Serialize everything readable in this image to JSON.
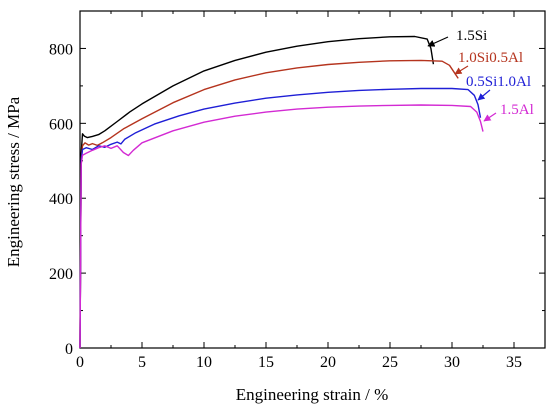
{
  "chart_data": {
    "type": "line",
    "title": "",
    "xlabel": "Engineering strain / %",
    "ylabel": "Engineering stress / MPa",
    "xlim": [
      0,
      37.5
    ],
    "ylim": [
      0,
      900
    ],
    "xticks": [
      0,
      5,
      10,
      15,
      20,
      25,
      30,
      35
    ],
    "yticks": [
      0,
      200,
      400,
      600,
      800
    ],
    "grid": false,
    "legend": "inline labels with arrows",
    "series": [
      {
        "name": "1.5Si",
        "color": "#000000",
        "points": [
          [
            0,
            0
          ],
          [
            0.1,
            520
          ],
          [
            0.2,
            572
          ],
          [
            0.35,
            566
          ],
          [
            0.6,
            562
          ],
          [
            1.0,
            565
          ],
          [
            1.5,
            570
          ],
          [
            2,
            580
          ],
          [
            3,
            605
          ],
          [
            4,
            630
          ],
          [
            5,
            652
          ],
          [
            7.5,
            700
          ],
          [
            10,
            740
          ],
          [
            12.5,
            768
          ],
          [
            15,
            790
          ],
          [
            17.5,
            806
          ],
          [
            20,
            818
          ],
          [
            22.5,
            826
          ],
          [
            25,
            831
          ],
          [
            27,
            832
          ],
          [
            28,
            825
          ],
          [
            28.3,
            800
          ],
          [
            28.5,
            758
          ]
        ]
      },
      {
        "name": "1.0Si0.5Al",
        "color": "#b5341e",
        "points": [
          [
            0,
            0
          ],
          [
            0.1,
            500
          ],
          [
            0.2,
            540
          ],
          [
            0.4,
            548
          ],
          [
            0.7,
            542
          ],
          [
            1.0,
            546
          ],
          [
            1.4,
            541
          ],
          [
            1.8,
            548
          ],
          [
            2.5,
            562
          ],
          [
            3.5,
            585
          ],
          [
            5,
            612
          ],
          [
            7.5,
            655
          ],
          [
            10,
            690
          ],
          [
            12.5,
            716
          ],
          [
            15,
            735
          ],
          [
            17.5,
            748
          ],
          [
            20,
            757
          ],
          [
            22.5,
            763
          ],
          [
            25,
            767
          ],
          [
            27.5,
            768
          ],
          [
            29.2,
            766
          ],
          [
            29.8,
            755
          ],
          [
            30.2,
            735
          ],
          [
            30.5,
            720
          ]
        ]
      },
      {
        "name": "0.5Si1.0Al",
        "color": "#1f1fd6",
        "points": [
          [
            0,
            0
          ],
          [
            0.1,
            500
          ],
          [
            0.2,
            530
          ],
          [
            0.5,
            535
          ],
          [
            1.0,
            530
          ],
          [
            1.5,
            540
          ],
          [
            2.0,
            536
          ],
          [
            2.5,
            544
          ],
          [
            3.0,
            550
          ],
          [
            3.3,
            545
          ],
          [
            3.6,
            557
          ],
          [
            4.5,
            575
          ],
          [
            6,
            598
          ],
          [
            8,
            620
          ],
          [
            10,
            638
          ],
          [
            12.5,
            654
          ],
          [
            15,
            667
          ],
          [
            17.5,
            676
          ],
          [
            20,
            683
          ],
          [
            22.5,
            688
          ],
          [
            25,
            691
          ],
          [
            27.5,
            693
          ],
          [
            30,
            693
          ],
          [
            31.3,
            690
          ],
          [
            31.8,
            675
          ],
          [
            32.1,
            650
          ],
          [
            32.3,
            615
          ]
        ]
      },
      {
        "name": "1.5Al",
        "color": "#d32ad3",
        "points": [
          [
            0,
            0
          ],
          [
            0.1,
            490
          ],
          [
            0.2,
            515
          ],
          [
            0.5,
            520
          ],
          [
            1.0,
            528
          ],
          [
            1.5,
            535
          ],
          [
            2.0,
            540
          ],
          [
            2.5,
            533
          ],
          [
            3.0,
            540
          ],
          [
            3.5,
            522
          ],
          [
            3.9,
            514
          ],
          [
            4.3,
            528
          ],
          [
            5,
            548
          ],
          [
            7.5,
            580
          ],
          [
            10,
            603
          ],
          [
            12.5,
            619
          ],
          [
            15,
            630
          ],
          [
            17.5,
            638
          ],
          [
            20,
            643
          ],
          [
            22.5,
            646
          ],
          [
            25,
            648
          ],
          [
            27.5,
            649
          ],
          [
            30,
            648
          ],
          [
            31.5,
            645
          ],
          [
            32.0,
            630
          ],
          [
            32.3,
            605
          ],
          [
            32.5,
            578
          ]
        ]
      }
    ]
  }
}
